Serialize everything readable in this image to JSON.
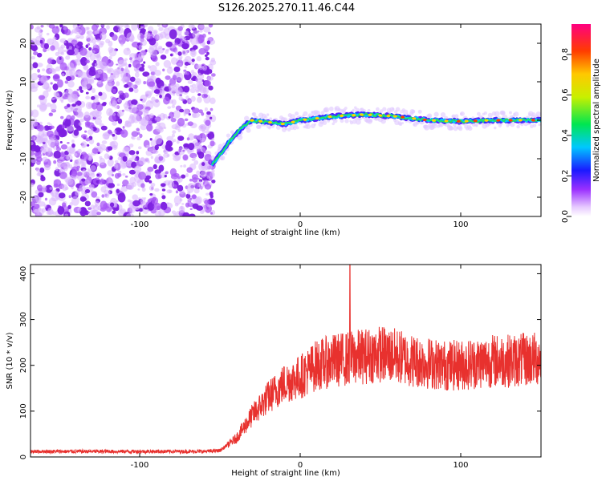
{
  "title": "S126.2025.270.11.46.C44",
  "colors": {
    "spec_dot": "#8a2be2",
    "snr_line": "#e8312e",
    "axis": "#000000"
  },
  "chart_data": [
    {
      "type": "heatmap",
      "name": "spectrogram",
      "xlabel": "Height of straight line (km)",
      "ylabel": "Frequency (Hz)",
      "xlim": [
        -168,
        150
      ],
      "ylim": [
        -25,
        25
      ],
      "xticks": [
        -100,
        0,
        100
      ],
      "xtick_labels": [
        "-100",
        "0",
        "100"
      ],
      "yticks": [
        -20,
        -10,
        0,
        10,
        20
      ],
      "ytick_labels": [
        "-20",
        "-10",
        "0",
        "10",
        "20"
      ],
      "noise_region_x": [
        -168,
        -54
      ],
      "trace": [
        {
          "x": -55,
          "y": -11.5
        },
        {
          "x": -50,
          "y": -9
        },
        {
          "x": -45,
          "y": -6
        },
        {
          "x": -40,
          "y": -3.5
        },
        {
          "x": -35,
          "y": -1.5
        },
        {
          "x": -30,
          "y": 0
        },
        {
          "x": -20,
          "y": -0.5
        },
        {
          "x": -10,
          "y": -1
        },
        {
          "x": 0,
          "y": 0
        },
        {
          "x": 20,
          "y": 1
        },
        {
          "x": 40,
          "y": 1.5
        },
        {
          "x": 60,
          "y": 1
        },
        {
          "x": 80,
          "y": 0
        },
        {
          "x": 100,
          "y": -0.3
        },
        {
          "x": 120,
          "y": 0
        },
        {
          "x": 150,
          "y": 0
        }
      ],
      "colorbar": {
        "label": "Normalized spectral amplitude",
        "range": [
          0,
          0.95
        ],
        "ticks": [
          "0.0",
          "0.2",
          "0.4",
          "0.6",
          "0.8"
        ]
      }
    },
    {
      "type": "line",
      "name": "snr",
      "xlabel": "Height of straight line (km)",
      "ylabel": "SNR (10 * v/v)",
      "xlim": [
        -168,
        150
      ],
      "ylim": [
        0,
        420
      ],
      "xticks": [
        -100,
        0,
        100
      ],
      "xtick_labels": [
        "-100",
        "0",
        "100"
      ],
      "yticks": [
        0,
        100,
        200,
        300,
        400
      ],
      "ytick_labels": [
        "0",
        "100",
        "200",
        "300",
        "400"
      ],
      "series": [
        {
          "name": "SNR",
          "x": [
            -168,
            -60,
            -50,
            -40,
            -30,
            -20,
            -10,
            0,
            10,
            20,
            30,
            40,
            50,
            60,
            70,
            80,
            90,
            100,
            110,
            120,
            130,
            140,
            150
          ],
          "y": [
            12,
            12,
            14,
            40,
            90,
            130,
            160,
            175,
            200,
            210,
            215,
            220,
            225,
            220,
            210,
            205,
            200,
            200,
            205,
            210,
            210,
            212,
            215
          ],
          "spike": {
            "x": 31,
            "y": 420
          }
        }
      ]
    }
  ]
}
